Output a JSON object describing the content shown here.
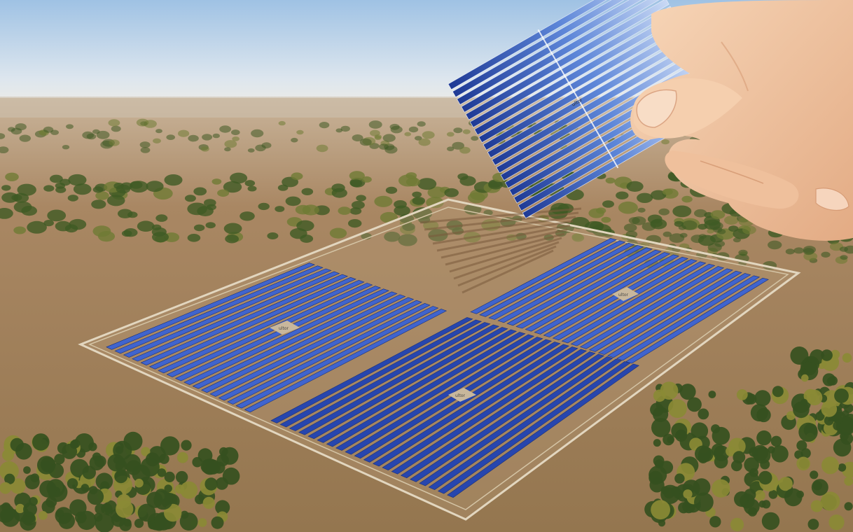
{
  "image": {
    "subject": "aerial solar farm with hand holding a solar module cutout",
    "colors": {
      "sky_top": "#a7c8e6",
      "sky_horizon": "#e9ecef",
      "ground_far": "#b89c7c",
      "ground_near": "#9a7a55",
      "vegetation": "#3f5a24",
      "vegetation_light": "#6f7b34",
      "panel_dark": "#1e3ba0",
      "panel_light": "#6f9af0",
      "fence": "#d9cdb5",
      "skin": "#f2c9a6",
      "skin_shadow": "#d79c76"
    },
    "panel_blocks": [
      {
        "rows": 17
      },
      {
        "rows": 20
      },
      {
        "rows": 18
      }
    ],
    "inverter_labels": [
      "ultor",
      "ultor",
      "ultor"
    ],
    "module_label": "ultor"
  }
}
